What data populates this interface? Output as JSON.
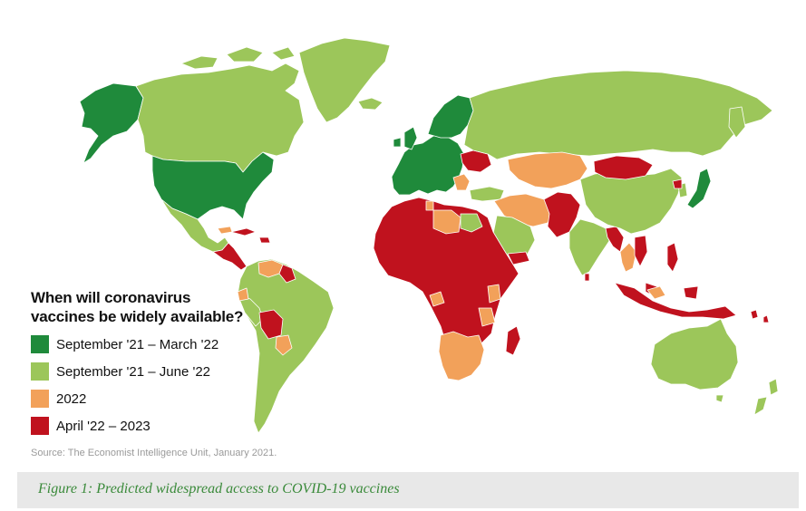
{
  "legend": {
    "title_line1": "When will coronavirus",
    "title_line2": "vaccines be widely available?",
    "items": [
      {
        "label": "September '21 – March '22",
        "color": "#1f8a3b"
      },
      {
        "label": "September '21 – June '22",
        "color": "#9cc65a"
      },
      {
        "label": "2022",
        "color": "#f2a15a"
      },
      {
        "label": "April '22 – 2023",
        "color": "#c0121e"
      }
    ]
  },
  "source": "Source: The Economist Intelligence Unit, January 2021.",
  "caption": "Figure 1: Predicted widespread access to COVID-19 vaccines",
  "regions": [
    {
      "name": "Alaska",
      "category": "September '21 – March '22"
    },
    {
      "name": "Canada",
      "category": "September '21 – June '22"
    },
    {
      "name": "Greenland",
      "category": "September '21 – June '22"
    },
    {
      "name": "United States",
      "category": "September '21 – March '22"
    },
    {
      "name": "Mexico",
      "category": "September '21 – June '22"
    },
    {
      "name": "Central America",
      "category": "April '22 – 2023"
    },
    {
      "name": "South America",
      "category": "September '21 – June '22"
    },
    {
      "name": "Bolivia",
      "category": "April '22 – 2023"
    },
    {
      "name": "Venezuela",
      "category": "2022"
    },
    {
      "name": "Western Europe",
      "category": "September '21 – March '22"
    },
    {
      "name": "Scandinavia",
      "category": "September '21 – March '22"
    },
    {
      "name": "Ukraine",
      "category": "April '22 – 2023"
    },
    {
      "name": "Russia",
      "category": "September '21 – June '22"
    },
    {
      "name": "North Africa",
      "category": "April '22 – 2023"
    },
    {
      "name": "Libya",
      "category": "2022"
    },
    {
      "name": "Central Africa",
      "category": "April '22 – 2023"
    },
    {
      "name": "Southern Africa",
      "category": "2022"
    },
    {
      "name": "Madagascar",
      "category": "April '22 – 2023"
    },
    {
      "name": "Middle East",
      "category": "2022"
    },
    {
      "name": "Saudi Arabia",
      "category": "September '21 – June '22"
    },
    {
      "name": "Kazakhstan",
      "category": "2022"
    },
    {
      "name": "Afghanistan & Pakistan",
      "category": "April '22 – 2023"
    },
    {
      "name": "India",
      "category": "September '21 – June '22"
    },
    {
      "name": "China",
      "category": "September '21 – June '22"
    },
    {
      "name": "Mongolia",
      "category": "April '22 – 2023"
    },
    {
      "name": "Japan",
      "category": "September '21 – March '22"
    },
    {
      "name": "Southeast Asia",
      "category": "April '22 – 2023"
    },
    {
      "name": "Indonesia",
      "category": "April '22 – 2023"
    },
    {
      "name": "Australia",
      "category": "September '21 – June '22"
    },
    {
      "name": "New Zealand",
      "category": "September '21 – June '22"
    }
  ]
}
